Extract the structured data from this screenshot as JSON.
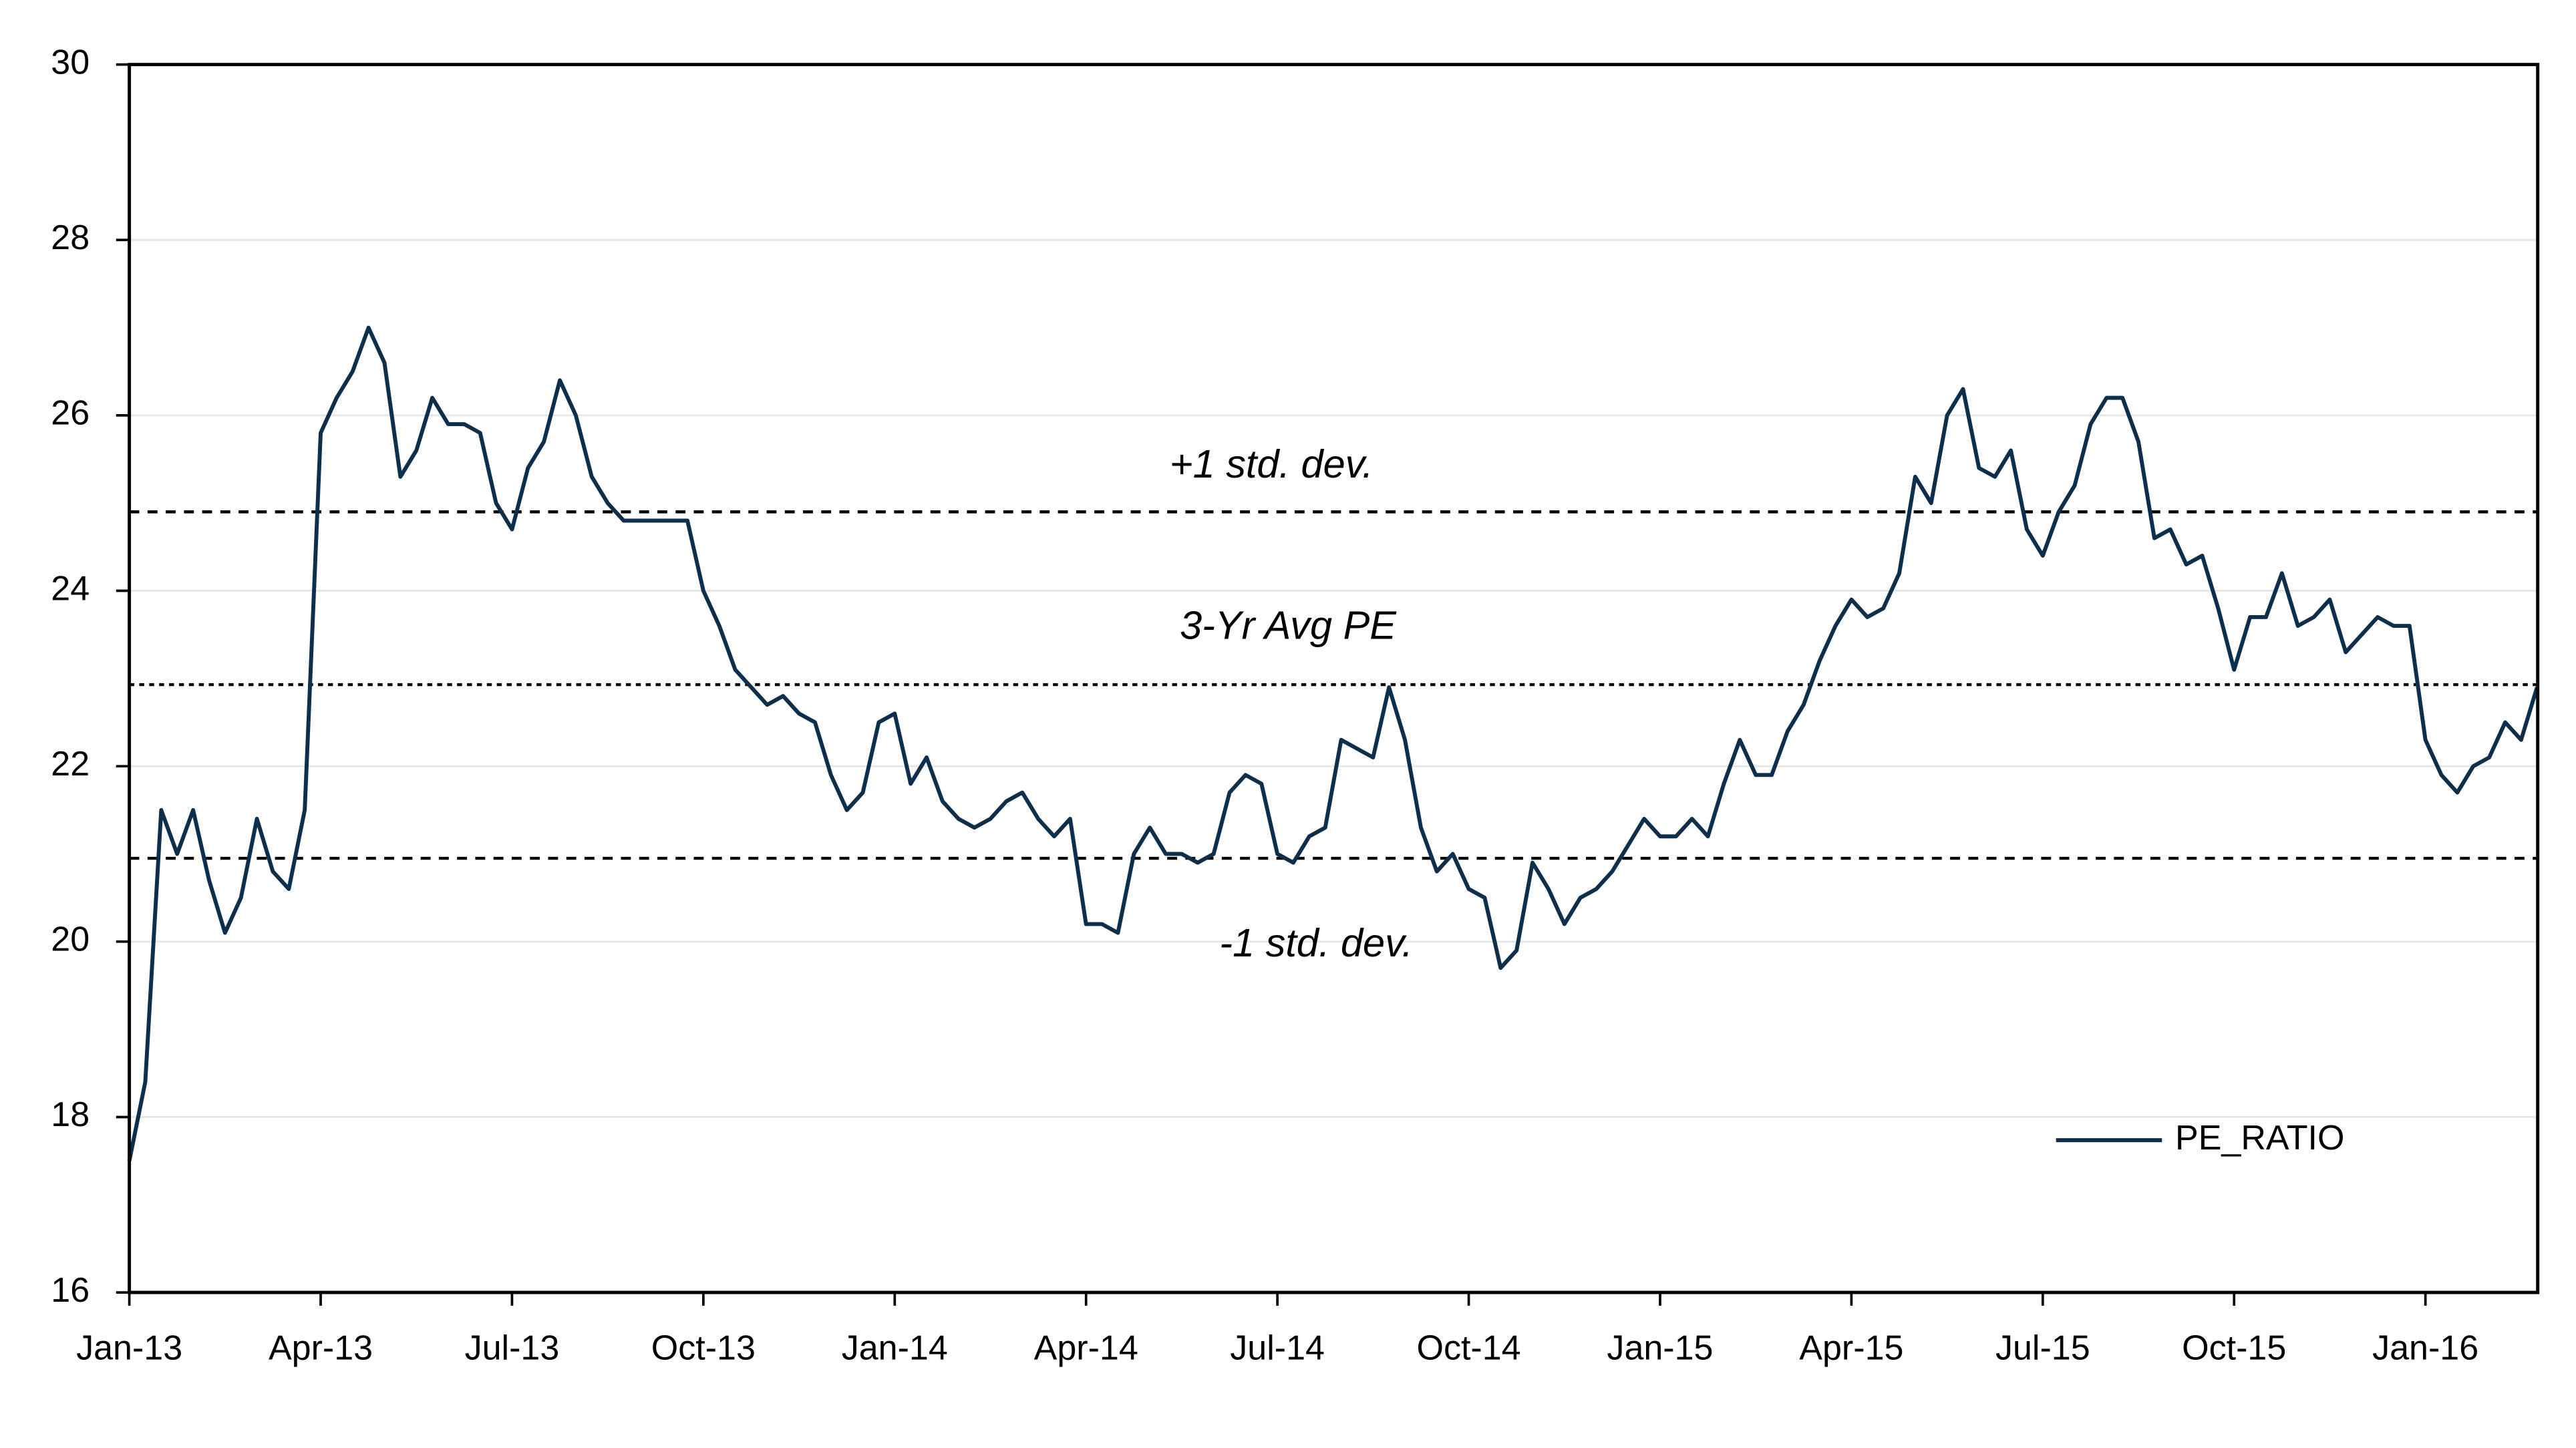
{
  "chart_data": {
    "type": "line",
    "series": [
      {
        "name": "PE_RATIO",
        "color": "#0d2f4b",
        "x": [
          0,
          0.25,
          0.5,
          0.75,
          1,
          1.25,
          1.5,
          1.75,
          2,
          2.25,
          2.5,
          2.75,
          3,
          3.25,
          3.5,
          3.75,
          4,
          4.25,
          4.5,
          4.75,
          5,
          5.25,
          5.5,
          5.75,
          6,
          6.25,
          6.5,
          6.75,
          7,
          7.25,
          7.5,
          7.75,
          8,
          8.25,
          8.5,
          8.75,
          9,
          9.25,
          9.5,
          9.75,
          10,
          10.25,
          10.5,
          10.75,
          11,
          11.25,
          11.5,
          11.75,
          12,
          12.25,
          12.5,
          12.75,
          13,
          13.25,
          13.5,
          13.75,
          14,
          14.25,
          14.5,
          14.75,
          15,
          15.25,
          15.5,
          15.75,
          16,
          16.25,
          16.5,
          16.75,
          17,
          17.25,
          17.5,
          17.75,
          18,
          18.25,
          18.5,
          18.75,
          19,
          19.25,
          19.5,
          19.75,
          20,
          20.25,
          20.5,
          20.75,
          21,
          21.25,
          21.5,
          21.75,
          22,
          22.25,
          22.5,
          22.75,
          23,
          23.25,
          23.5,
          23.75,
          24,
          24.25,
          24.5,
          24.75,
          25,
          25.25,
          25.5,
          25.75,
          26,
          26.25,
          26.5,
          26.75,
          27,
          27.25,
          27.5,
          27.75,
          28,
          28.25,
          28.5,
          28.75,
          29,
          29.25,
          29.5,
          29.75,
          30,
          30.25,
          30.5,
          30.75,
          31,
          31.25,
          31.5,
          31.75,
          32,
          32.25,
          32.5,
          32.75,
          33,
          33.25,
          33.5,
          33.75,
          34,
          34.25,
          34.5,
          34.75,
          35,
          35.25,
          35.5,
          35.75,
          36,
          36.25,
          36.5,
          36.75,
          37,
          37.25,
          37.5,
          37.75
        ],
        "values": [
          17.5,
          18.4,
          21.5,
          21.0,
          21.5,
          20.7,
          20.1,
          20.5,
          21.4,
          20.8,
          20.6,
          21.5,
          25.8,
          26.2,
          26.5,
          27.0,
          26.6,
          25.3,
          25.6,
          26.2,
          25.9,
          25.9,
          25.8,
          25.0,
          24.7,
          25.4,
          25.7,
          26.4,
          26.0,
          25.3,
          25.0,
          24.8,
          24.8,
          24.8,
          24.8,
          24.8,
          24.0,
          23.6,
          23.1,
          22.9,
          22.7,
          22.8,
          22.6,
          22.5,
          21.9,
          21.5,
          21.7,
          22.5,
          22.6,
          21.8,
          22.1,
          21.6,
          21.4,
          21.3,
          21.4,
          21.6,
          21.7,
          21.4,
          21.2,
          21.4,
          20.2,
          20.2,
          20.1,
          21.0,
          21.3,
          21.0,
          21.0,
          20.9,
          21.0,
          21.7,
          21.9,
          21.8,
          21.0,
          20.9,
          21.2,
          21.3,
          22.3,
          22.2,
          22.1,
          22.9,
          22.3,
          21.3,
          20.8,
          21.0,
          20.6,
          20.5,
          19.7,
          19.9,
          20.9,
          20.6,
          20.2,
          20.5,
          20.6,
          20.8,
          21.1,
          21.4,
          21.2,
          21.2,
          21.4,
          21.2,
          21.8,
          22.3,
          21.9,
          21.9,
          22.4,
          22.7,
          23.2,
          23.6,
          23.9,
          23.7,
          23.8,
          24.2,
          25.3,
          25.0,
          26.0,
          26.3,
          25.4,
          25.3,
          25.6,
          24.7,
          24.4,
          24.9,
          25.2,
          25.9,
          26.2,
          26.2,
          25.7,
          24.6,
          24.7,
          24.3,
          24.4,
          23.8,
          23.1,
          23.7,
          23.7,
          24.2,
          23.6,
          23.7,
          23.9,
          23.3,
          23.5,
          23.7,
          23.6,
          23.6,
          22.3,
          21.9,
          21.7,
          22.0,
          22.1,
          22.5,
          22.3,
          22.9
        ]
      }
    ],
    "reference_lines": [
      {
        "label": "+1 std. dev.",
        "value": 24.9
      },
      {
        "label": "3-Yr Avg PE",
        "value": 22.93
      },
      {
        "label": "-1 std. dev.",
        "value": 20.95
      }
    ],
    "xlim": [
      0,
      37.76
    ],
    "xticks": [
      {
        "value": 0,
        "label": "Jan-13"
      },
      {
        "value": 3,
        "label": "Apr-13"
      },
      {
        "value": 6,
        "label": "Jul-13"
      },
      {
        "value": 9,
        "label": "Oct-13"
      },
      {
        "value": 12,
        "label": "Jan-14"
      },
      {
        "value": 15,
        "label": "Apr-14"
      },
      {
        "value": 18,
        "label": "Jul-14"
      },
      {
        "value": 21,
        "label": "Oct-14"
      },
      {
        "value": 24,
        "label": "Jan-15"
      },
      {
        "value": 27,
        "label": "Apr-15"
      },
      {
        "value": 30,
        "label": "Jul-15"
      },
      {
        "value": 33,
        "label": "Oct-15"
      },
      {
        "value": 36,
        "label": "Jan-16"
      }
    ],
    "ylim": [
      16,
      30
    ],
    "yticks": [
      16,
      18,
      20,
      22,
      24,
      26,
      28,
      30
    ],
    "grid": true,
    "legend": "lower right"
  }
}
